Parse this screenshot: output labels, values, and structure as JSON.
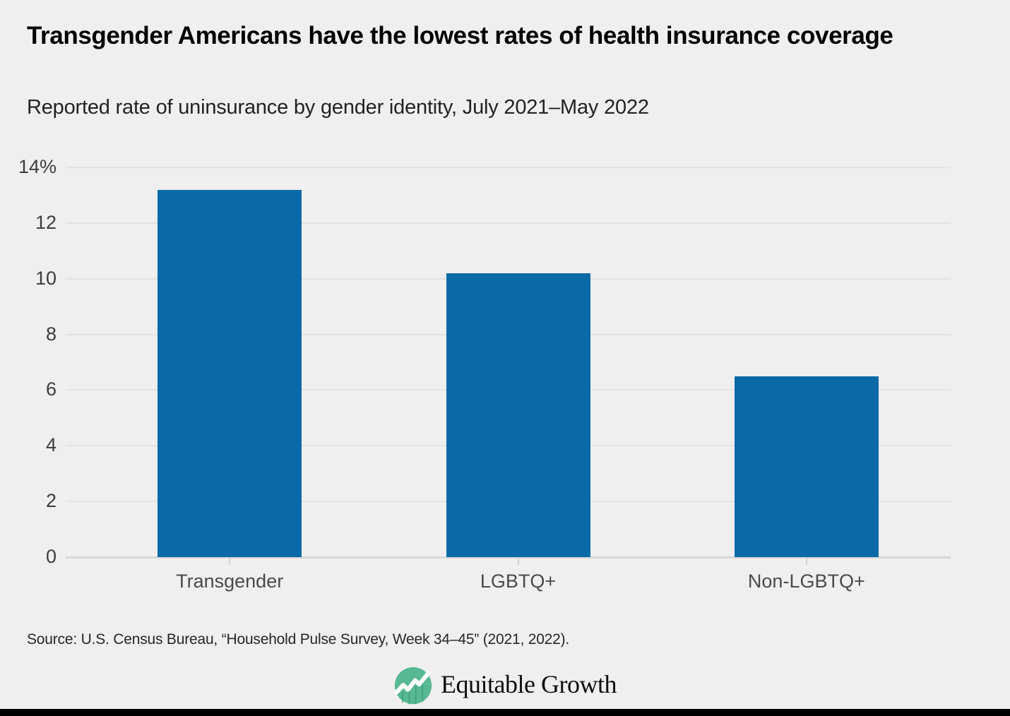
{
  "header": {
    "title": "Transgender Americans have the lowest rates of health insurance coverage",
    "subtitle": "Reported rate of uninsurance by gender identity, July 2021–May 2022"
  },
  "chart_data": {
    "type": "bar",
    "title": "Transgender Americans have the lowest rates of health insurance coverage",
    "subtitle": "Reported rate of uninsurance by gender identity, July 2021–May 2022",
    "categories": [
      "Transgender",
      "LGBTQ+",
      "Non-LGBTQ+"
    ],
    "values": [
      13.2,
      10.2,
      6.5
    ],
    "unit": "%",
    "xlabel": "",
    "ylabel": "",
    "ylim": [
      0,
      14
    ],
    "ytick_step": 2,
    "ytick_labels": [
      "0",
      "2",
      "4",
      "6",
      "8",
      "10",
      "12",
      "14%"
    ],
    "grid": true,
    "legend_position": "none",
    "bar_color": "#0a6aa8"
  },
  "footer": {
    "source": "Source: U.S. Census Bureau, “Household Pulse Survey, Week 34–45” (2021, 2022).",
    "logo_text": "Equitable Growth",
    "logo_icon": "rising-line-chart-in-circle",
    "logo_color": "#57b894"
  }
}
